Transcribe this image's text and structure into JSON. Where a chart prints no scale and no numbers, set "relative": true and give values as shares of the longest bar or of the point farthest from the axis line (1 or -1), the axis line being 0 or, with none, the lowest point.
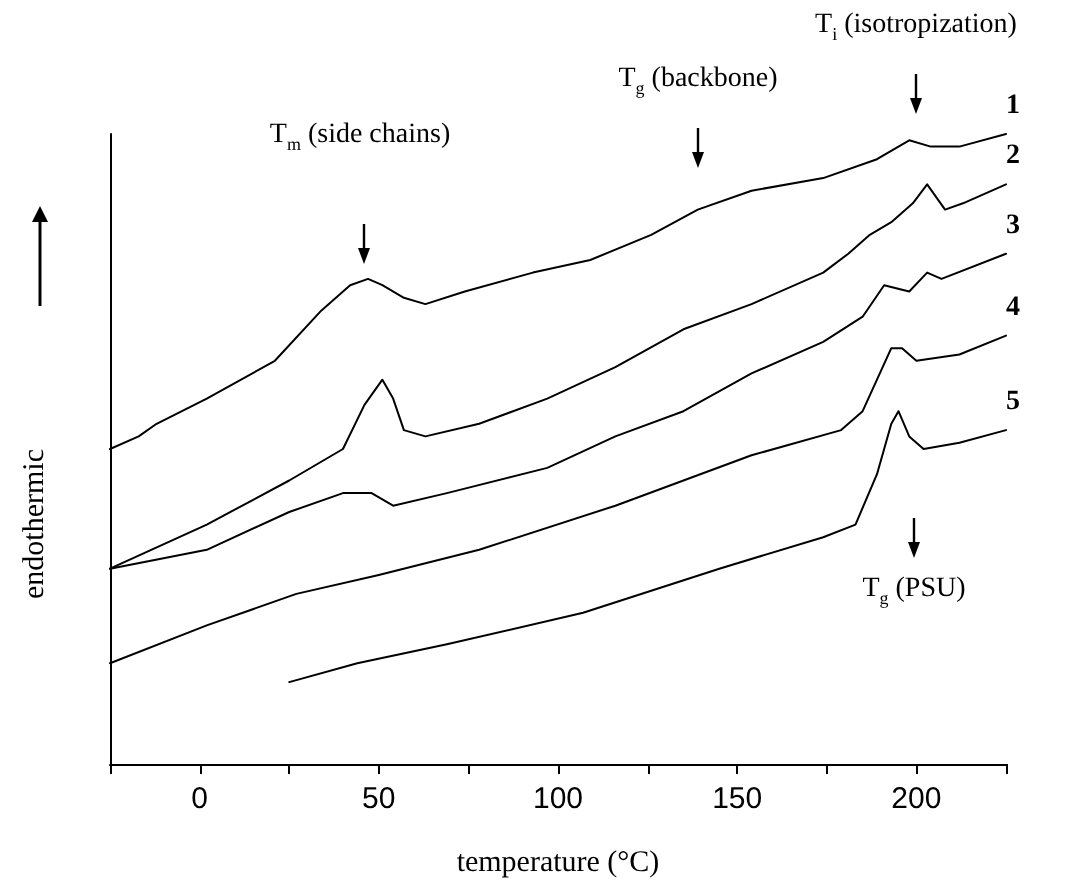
{
  "chart_data": {
    "type": "line",
    "relative": true,
    "xlabel": "temperature (°C)",
    "ylabel": "endothermic",
    "xlim": [
      -25,
      225
    ],
    "xticks": [
      {
        "value": -25,
        "label": null
      },
      0,
      {
        "value": 25,
        "label": null
      },
      50,
      {
        "value": 75,
        "label": null
      },
      100,
      {
        "value": 125,
        "label": null
      },
      150,
      {
        "value": 175,
        "label": null
      },
      200,
      {
        "value": 225,
        "label": null
      }
    ],
    "marker": "none",
    "line_style": "solid",
    "annotations": [
      "T$_{m}$ (side chains)",
      "T$_{g}$ (backbone)",
      "T$_{i}$ (isotropization)",
      "T$_{g}$ (PSU)"
    ],
    "series": [
      {
        "name": "1",
        "color": "#000000",
        "x": [
          -25,
          -17,
          -12,
          2,
          21,
          34,
          42,
          47,
          51,
          57,
          63,
          74,
          93,
          109,
          126,
          139,
          154,
          174,
          189,
          198,
          204,
          212,
          225
        ],
        "values": [
          0.5,
          0.52,
          0.54,
          0.58,
          0.64,
          0.72,
          0.76,
          0.77,
          0.76,
          0.74,
          0.73,
          0.75,
          0.78,
          0.8,
          0.84,
          0.88,
          0.91,
          0.93,
          0.96,
          0.99,
          0.98,
          0.98,
          1.0
        ]
      },
      {
        "name": "2",
        "color": "#000000",
        "x": [
          -25,
          2,
          25,
          40,
          46,
          51,
          54,
          57,
          63,
          78,
          97,
          116,
          135,
          154,
          174,
          181,
          187,
          193,
          199,
          203,
          208,
          213,
          225
        ],
        "values": [
          0.31,
          0.38,
          0.45,
          0.5,
          0.57,
          0.61,
          0.58,
          0.53,
          0.52,
          0.54,
          0.58,
          0.63,
          0.69,
          0.73,
          0.78,
          0.81,
          0.84,
          0.86,
          0.89,
          0.92,
          0.88,
          0.89,
          0.92
        ]
      },
      {
        "name": "3",
        "color": "#000000",
        "x": [
          -25,
          2,
          25,
          40,
          48,
          54,
          69,
          97,
          116,
          135,
          154,
          174,
          185,
          191,
          198,
          203,
          207,
          225
        ],
        "values": [
          0.31,
          0.34,
          0.4,
          0.43,
          0.43,
          0.41,
          0.43,
          0.47,
          0.52,
          0.56,
          0.62,
          0.67,
          0.71,
          0.76,
          0.75,
          0.78,
          0.77,
          0.81
        ]
      },
      {
        "name": "4",
        "color": "#000000",
        "x": [
          -25,
          2,
          27,
          50,
          78,
          116,
          154,
          179,
          185,
          189,
          193,
          196,
          200,
          212,
          225
        ],
        "values": [
          0.16,
          0.22,
          0.27,
          0.3,
          0.34,
          0.41,
          0.49,
          0.53,
          0.56,
          0.61,
          0.66,
          0.66,
          0.64,
          0.65,
          0.68
        ]
      },
      {
        "name": "5",
        "color": "#000000",
        "x": [
          25,
          44,
          69,
          107,
          145,
          174,
          183,
          189,
          193,
          195,
          198,
          202,
          212,
          225
        ],
        "values": [
          0.13,
          0.16,
          0.19,
          0.24,
          0.31,
          0.36,
          0.38,
          0.46,
          0.54,
          0.56,
          0.52,
          0.5,
          0.51,
          0.53
        ]
      }
    ]
  }
}
